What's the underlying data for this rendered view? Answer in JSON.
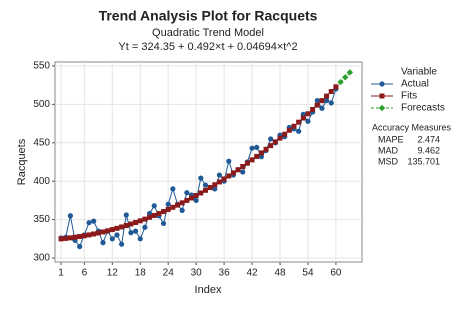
{
  "chart_data": {
    "type": "line",
    "title": "Trend Analysis Plot for Racquets",
    "subtitle": "Quadratic Trend Model",
    "equation": "Yt = 324.35 + 0.492×t + 0.04694×t^2",
    "x_label": "Index",
    "y_label": "Racquets",
    "x": [
      1,
      2,
      3,
      4,
      5,
      6,
      7,
      8,
      9,
      10,
      11,
      12,
      13,
      14,
      15,
      16,
      17,
      18,
      19,
      20,
      21,
      22,
      23,
      24,
      25,
      26,
      27,
      28,
      29,
      30,
      31,
      32,
      33,
      34,
      35,
      36,
      37,
      38,
      39,
      40,
      41,
      42,
      43,
      44,
      45,
      46,
      47,
      48,
      49,
      50,
      51,
      52,
      53,
      54,
      55,
      56,
      57,
      58,
      59,
      60
    ],
    "series": [
      {
        "name": "Actual",
        "color": "#1f5a96",
        "marker": "circle",
        "values": [
          326,
          327,
          355,
          323,
          315,
          330,
          346,
          348,
          335,
          320,
          335,
          325,
          330,
          318,
          356,
          333,
          335,
          325,
          340,
          358,
          368,
          355,
          345,
          370,
          390,
          370,
          362,
          385,
          382,
          375,
          404,
          395,
          392,
          390,
          408,
          400,
          426,
          408,
          415,
          412,
          425,
          443,
          444,
          432,
          440,
          455,
          450,
          460,
          458,
          470,
          468,
          465,
          487,
          478,
          490,
          505,
          495,
          505,
          502,
          520
        ]
      },
      {
        "name": "Fits",
        "color": "#8b1a1a",
        "marker": "square",
        "values": [
          324.89,
          325.52,
          326.25,
          327.07,
          327.98,
          328.99,
          330.09,
          331.29,
          332.58,
          333.96,
          335.44,
          337.01,
          338.68,
          340.44,
          342.29,
          344.24,
          346.28,
          348.42,
          350.64,
          352.97,
          355.38,
          357.89,
          360.5,
          363.2,
          365.99,
          368.87,
          371.85,
          374.93,
          378.09,
          381.36,
          384.71,
          388.16,
          391.7,
          395.34,
          399.07,
          402.9,
          406.82,
          410.83,
          414.93,
          419.13,
          423.43,
          427.82,
          432.3,
          436.87,
          441.54,
          446.31,
          451.17,
          456.12,
          461.16,
          466.3,
          471.53,
          476.86,
          482.28,
          487.79,
          493.4,
          499.1,
          504.9,
          510.79,
          516.77,
          522.85
        ]
      }
    ],
    "forecasts": {
      "name": "Forecasts",
      "color": "#2ca02c",
      "marker": "diamond",
      "x": [
        61,
        62,
        63
      ],
      "values": [
        529.02,
        535.28,
        541.65
      ]
    },
    "legend_title": "Variable",
    "accuracy_title": "Accuracy Measures",
    "accuracy_measures": [
      [
        "MAPE",
        2.474
      ],
      [
        "MAD",
        9.462
      ],
      [
        "MSD",
        135.701
      ]
    ],
    "xlim": [
      -0.3,
      65.6
    ],
    "xticks": [
      1,
      6,
      12,
      18,
      24,
      30,
      36,
      42,
      48,
      54,
      60
    ],
    "ylim": [
      294.8,
      555.2
    ],
    "yticks": [
      300,
      350,
      400,
      450,
      500,
      550
    ],
    "grid": true
  }
}
